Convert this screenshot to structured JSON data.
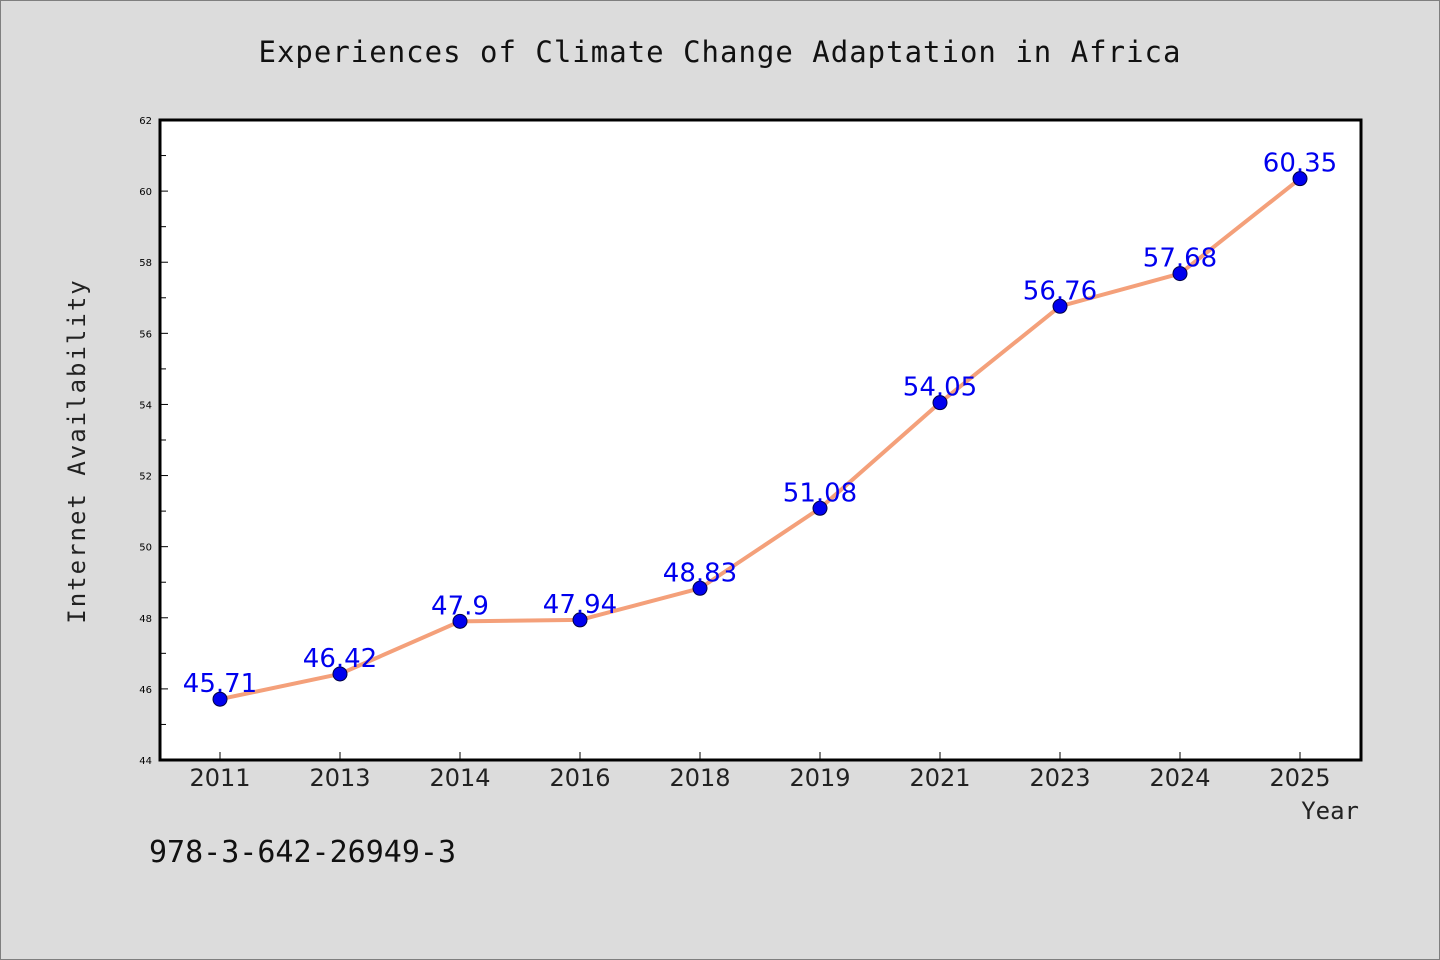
{
  "chart_data": {
    "type": "line",
    "title": "Experiences of Climate Change Adaptation in Africa",
    "xlabel": "Year",
    "ylabel": "Internet Availability",
    "categories": [
      "2011",
      "2013",
      "2014",
      "2016",
      "2018",
      "2019",
      "2021",
      "2023",
      "2024",
      "2025"
    ],
    "series": [
      {
        "values": [
          45.71,
          46.42,
          47.9,
          47.94,
          48.83,
          51.08,
          54.05,
          56.76,
          57.68,
          60.35
        ],
        "labels": [
          "45.71",
          "46.42",
          "47.9",
          "47.94",
          "48.83",
          "51.08",
          "54.05",
          "56.76",
          "57.68",
          "60.35"
        ],
        "line_color": "#f4a07a",
        "marker_color": "#0000ee",
        "label_color": "#0000ee"
      }
    ],
    "ylim": [
      44,
      62
    ],
    "yticks": [
      "44",
      "46",
      "48",
      "50",
      "52",
      "54",
      "56",
      "58",
      "60",
      "62"
    ],
    "grid": false,
    "legend": "none"
  },
  "footer": {
    "isbn": "978-3-642-26949-3"
  },
  "colors": {
    "background": "#dcdcdc",
    "plot_background": "#ffffff",
    "axis": "#000000"
  }
}
